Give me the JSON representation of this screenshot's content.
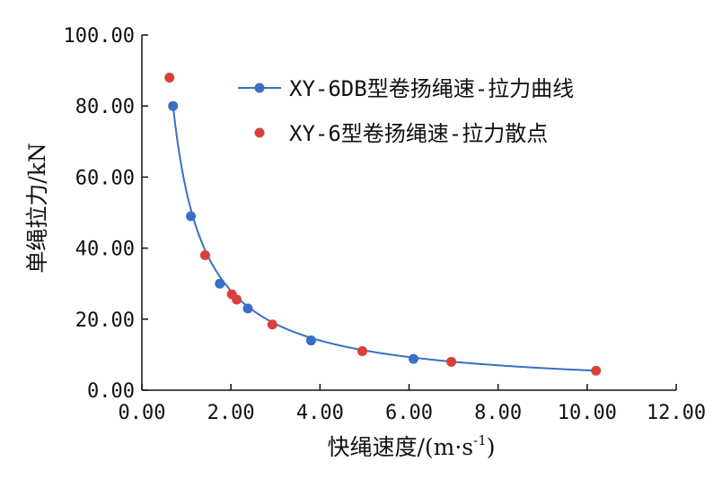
{
  "chart_data": {
    "type": "scatter",
    "xlabel": "快绳速度/(m·s",
    "xlabel_sup": "-1",
    "xlabel_close": ")",
    "ylabel": "单绳拉力/kN",
    "xlim": [
      0,
      12
    ],
    "ylim": [
      0,
      100
    ],
    "x_ticks": [
      "0.00",
      "2.00",
      "4.00",
      "6.00",
      "8.00",
      "10.00",
      "12.00"
    ],
    "y_ticks": [
      "0.00",
      "20.00",
      "40.00",
      "60.00",
      "80.00",
      "100.00"
    ],
    "legend_position": "top-right",
    "series": [
      {
        "name": "XY-6DB型卷扬绳速-拉力曲线",
        "color": "#3a6fc4",
        "marker_color": "#3a6fc4",
        "points": [
          {
            "x": 0.7,
            "y": 80
          },
          {
            "x": 1.1,
            "y": 49
          },
          {
            "x": 1.75,
            "y": 30
          },
          {
            "x": 2.38,
            "y": 23
          },
          {
            "x": 3.8,
            "y": 14
          },
          {
            "x": 6.1,
            "y": 8.8
          }
        ],
        "curve": {
          "a": 56.0,
          "x0": 0.7,
          "x1": 10.2
        }
      },
      {
        "name": "XY-6型卷扬绳速-拉力散点",
        "marker_color": "#d9403a",
        "points": [
          {
            "x": 0.62,
            "y": 88
          },
          {
            "x": 1.42,
            "y": 38
          },
          {
            "x": 2.02,
            "y": 27
          },
          {
            "x": 2.13,
            "y": 25.5
          },
          {
            "x": 2.93,
            "y": 18.5
          },
          {
            "x": 4.95,
            "y": 11
          },
          {
            "x": 6.95,
            "y": 8
          },
          {
            "x": 10.2,
            "y": 5.5
          }
        ]
      }
    ]
  }
}
